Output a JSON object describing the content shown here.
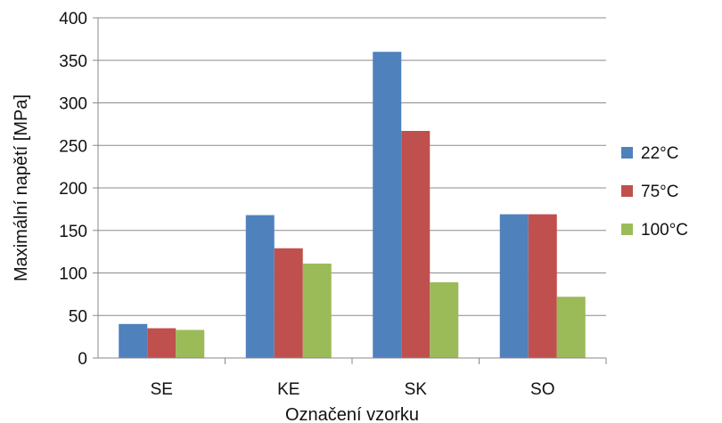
{
  "chart_data": {
    "type": "bar",
    "categories": [
      "SE",
      "KE",
      "SK",
      "SO"
    ],
    "series": [
      {
        "name": "22°C",
        "values": [
          40,
          168,
          360,
          169
        ],
        "color": "#4F81BD"
      },
      {
        "name": "75°C",
        "values": [
          35,
          129,
          267,
          169
        ],
        "color": "#C0504D"
      },
      {
        "name": "100°C",
        "values": [
          33,
          111,
          89,
          72
        ],
        "color": "#9BBB59"
      }
    ],
    "yticks": [
      "0",
      "50",
      "100",
      "150",
      "200",
      "250",
      "300",
      "350",
      "400"
    ],
    "ylim": [
      0,
      400
    ],
    "xlabel": "Označení vzorku",
    "ylabel": "Maximální napětí [MPa]",
    "grid": true,
    "legend_position": "right"
  }
}
